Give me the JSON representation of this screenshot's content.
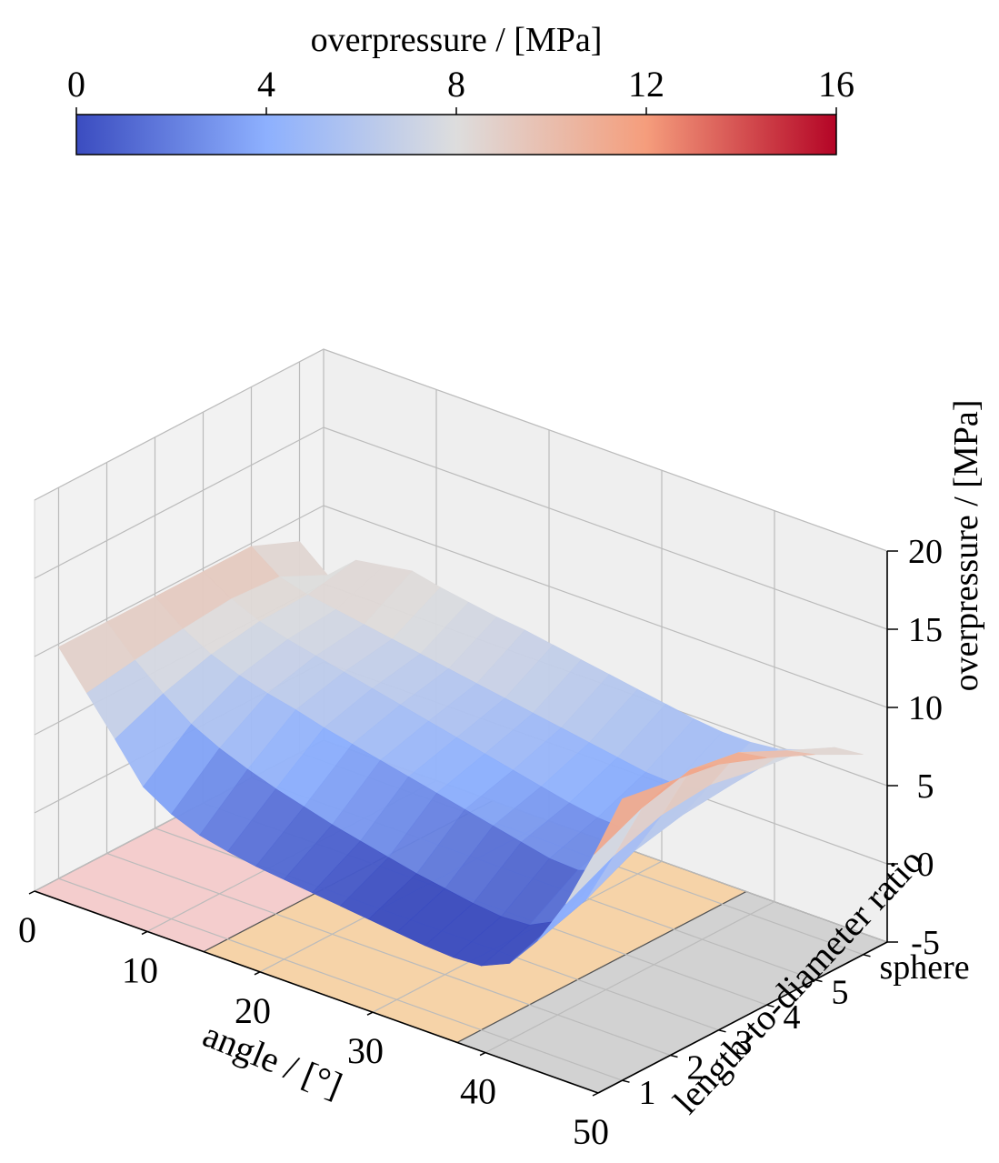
{
  "chart_data": {
    "type": "surface3d",
    "colorbar": {
      "label": "overpressure / [MPa]",
      "ticks": [
        "0",
        "4",
        "8",
        "12",
        "16"
      ],
      "range": [
        0,
        16
      ],
      "colormap": "coolwarm"
    },
    "x_axis": {
      "label": "angle / [°]",
      "ticks": [
        "0",
        "10",
        "20",
        "30",
        "40",
        "50"
      ],
      "range": [
        0,
        50
      ]
    },
    "y_axis": {
      "label": "length-to-diameter ratio",
      "ticks": [
        "1",
        "2",
        "3",
        "4",
        "5",
        "sphere"
      ]
    },
    "z_axis": {
      "label": "overpressure / [MPa]",
      "ticks": [
        "-5",
        "0",
        "5",
        "10",
        "15",
        "20"
      ],
      "range": [
        -5,
        20
      ]
    },
    "floor_regions": [
      {
        "angle_range": [
          0,
          15
        ],
        "color": "#f4cdcd"
      },
      {
        "angle_range": [
          15,
          37.5
        ],
        "color": "#f6d3a8"
      },
      {
        "angle_range": [
          37.5,
          50
        ],
        "color": "#d2d2d2"
      }
    ],
    "angles": [
      0,
      2.5,
      5,
      7.5,
      10,
      12.5,
      15,
      17.5,
      20,
      22.5,
      25,
      27.5,
      30,
      32.5,
      35,
      37.5,
      40,
      42.5,
      45,
      47.5,
      50
    ],
    "ratio_rows": [
      "1",
      "2",
      "3",
      "4",
      "5",
      "sphere"
    ],
    "z_values": [
      [
        9.8,
        7.5,
        5.2,
        2.8,
        1.7,
        1.0,
        0.6,
        0.3,
        0.1,
        -0.1,
        -0.3,
        -0.5,
        -0.7,
        -0.9,
        -1.0,
        -0.9,
        -0.1,
        2.0,
        5.0,
        8.8,
        13.0
      ],
      [
        9.8,
        8.0,
        6.5,
        5.2,
        4.3,
        3.6,
        3.0,
        2.5,
        2.0,
        1.6,
        1.2,
        0.8,
        0.5,
        0.2,
        0.0,
        0.1,
        1.0,
        3.0,
        6.5,
        10.2,
        12.5
      ],
      [
        9.8,
        8.4,
        7.4,
        6.7,
        6.2,
        5.8,
        5.3,
        4.9,
        4.5,
        4.1,
        3.7,
        3.3,
        2.9,
        2.5,
        2.1,
        2.0,
        2.6,
        4.5,
        7.5,
        11.0,
        12.0
      ],
      [
        9.8,
        8.7,
        7.9,
        7.4,
        7.0,
        6.6,
        6.2,
        5.8,
        5.4,
        5.0,
        4.6,
        4.2,
        3.8,
        3.4,
        3.1,
        3.0,
        3.5,
        5.2,
        7.8,
        10.5,
        10.8
      ],
      [
        9.8,
        8.5,
        8.0,
        7.7,
        7.4,
        7.1,
        6.8,
        6.5,
        6.2,
        5.9,
        5.6,
        5.3,
        5.0,
        4.7,
        4.4,
        4.3,
        4.6,
        5.5,
        7.2,
        9.0,
        9.4
      ],
      [
        8.5,
        7.0,
        8.6,
        8.9,
        9.2,
        8.8,
        8.5,
        8.2,
        8.0,
        7.7,
        7.4,
        7.1,
        6.8,
        6.5,
        6.2,
        6.0,
        6.0,
        6.2,
        6.8,
        7.6,
        7.8
      ]
    ]
  }
}
